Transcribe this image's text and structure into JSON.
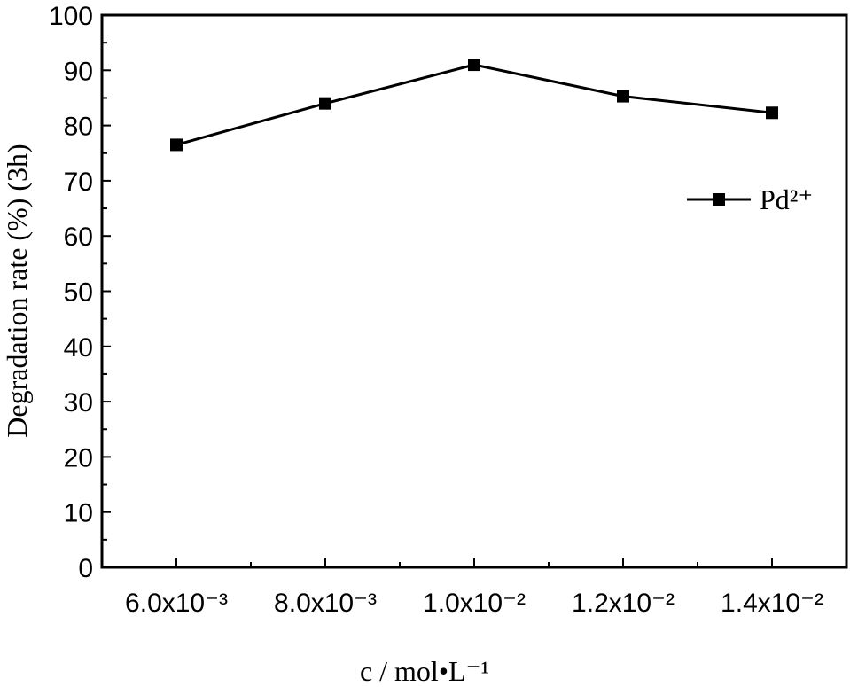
{
  "chart_data": {
    "type": "line",
    "x_label": "c / mol•L⁻¹",
    "y_label": "Degradation rate (%) (3h)",
    "x": [
      0.006,
      0.008,
      0.01,
      0.012,
      0.014
    ],
    "series": [
      {
        "name": "Pd²⁺",
        "color": "#000000",
        "marker": "square",
        "values": [
          76.5,
          84,
          91,
          85.3,
          82.3
        ]
      }
    ],
    "xlim": [
      0.005,
      0.015
    ],
    "xticks": [
      {
        "value": 0.006,
        "label": "6.0x10⁻³"
      },
      {
        "value": 0.008,
        "label": "8.0x10⁻³"
      },
      {
        "value": 0.01,
        "label": "1.0x10⁻²"
      },
      {
        "value": 0.012,
        "label": "1.2x10⁻²"
      },
      {
        "value": 0.014,
        "label": "1.4x10⁻²"
      }
    ],
    "ylim": [
      0,
      100
    ],
    "yticks": [
      0,
      10,
      20,
      30,
      40,
      50,
      60,
      70,
      80,
      90,
      100
    ],
    "grid": false,
    "legend": "upper right"
  }
}
